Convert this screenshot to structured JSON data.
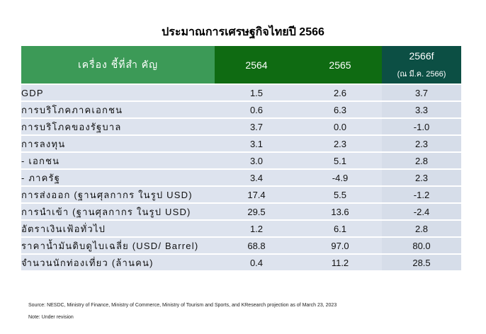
{
  "title": "ประมาณการเศรษฐกิจไทยปี 2566",
  "table": {
    "headers": {
      "label": "เครื่อง ชี้ที่สำ คัญ",
      "y1": "2564",
      "y2": "2565",
      "y3": "2566f",
      "y3_sub": "(ณ มี.ค. 2566)"
    },
    "rows": [
      {
        "label": "GDP",
        "v1": "1.5",
        "v2": "2.6",
        "v3": "3.7"
      },
      {
        "label": "การบริโภคภาคเอกชน",
        "v1": "0.6",
        "v2": "6.3",
        "v3": "3.3"
      },
      {
        "label": "การบริโภคของรัฐบาล",
        "v1": "3.7",
        "v2": "0.0",
        "v3": "-1.0"
      },
      {
        "label": "การลงทุน",
        "v1": "3.1",
        "v2": "2.3",
        "v3": "2.3"
      },
      {
        "label": "- เอกชน",
        "v1": "3.0",
        "v2": "5.1",
        "v3": "2.8"
      },
      {
        "label": "- ภาครัฐ",
        "v1": "3.4",
        "v2": "-4.9",
        "v3": "2.3"
      },
      {
        "label": "การส่งออก (ฐานศุลกากร ในรูป USD)",
        "v1": "17.4",
        "v2": "5.5",
        "v3": "-1.2"
      },
      {
        "label": "การนำเข้า (ฐานศุลกากร ในรูป USD)",
        "v1": "29.5",
        "v2": "13.6",
        "v3": "-2.4"
      },
      {
        "label": "อัตราเงินเฟ้อทั่วไป",
        "v1": "1.2",
        "v2": "6.1",
        "v3": "2.8"
      },
      {
        "label": "ราคาน้ำมันดิบดูไบเฉลี่ย (USD/ Barrel)",
        "v1": "68.8",
        "v2": "97.0",
        "v3": "80.0"
      },
      {
        "label": "จำนวนนักท่องเที่ยว (ล้านคน)",
        "v1": "0.4",
        "v2": "11.2",
        "v3": "28.5"
      }
    ]
  },
  "source": "Source: NESDC, Ministry of Finance, Ministry of Commerce, Ministry of Tourism and Sports, and KResearch projection as of March 23, 2023",
  "note": "Note: Under revision"
}
